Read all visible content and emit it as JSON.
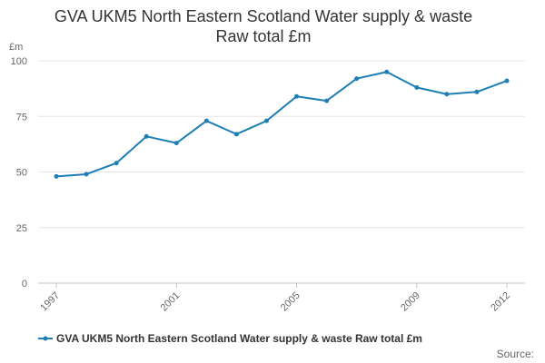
{
  "chart_data": {
    "type": "line",
    "title_lines": [
      "GVA UKM5 North Eastern Scotland Water supply & waste",
      "Raw total £m"
    ],
    "ylabel": "£m",
    "xlabel": "",
    "x": [
      1997,
      1998,
      1999,
      2000,
      2001,
      2002,
      2003,
      2004,
      2005,
      2006,
      2007,
      2008,
      2009,
      2010,
      2011,
      2012
    ],
    "series": [
      {
        "name": "GVA UKM5 North Eastern Scotland Water supply & waste Raw total £m",
        "values": [
          48,
          49,
          54,
          66,
          63,
          73,
          67,
          73,
          84,
          82,
          92,
          95,
          88,
          85,
          86,
          91
        ],
        "color": "#1f7fb4"
      }
    ],
    "x_tick_labels": [
      "1997",
      "2001",
      "2005",
      "2009",
      "2012"
    ],
    "xlim": [
      1997,
      2012
    ],
    "y_ticks": [
      0,
      25,
      50,
      75,
      100
    ],
    "ylim": [
      0,
      100
    ],
    "grid": "horizontal",
    "legend_position": "bottom"
  },
  "source_label": "Source:"
}
